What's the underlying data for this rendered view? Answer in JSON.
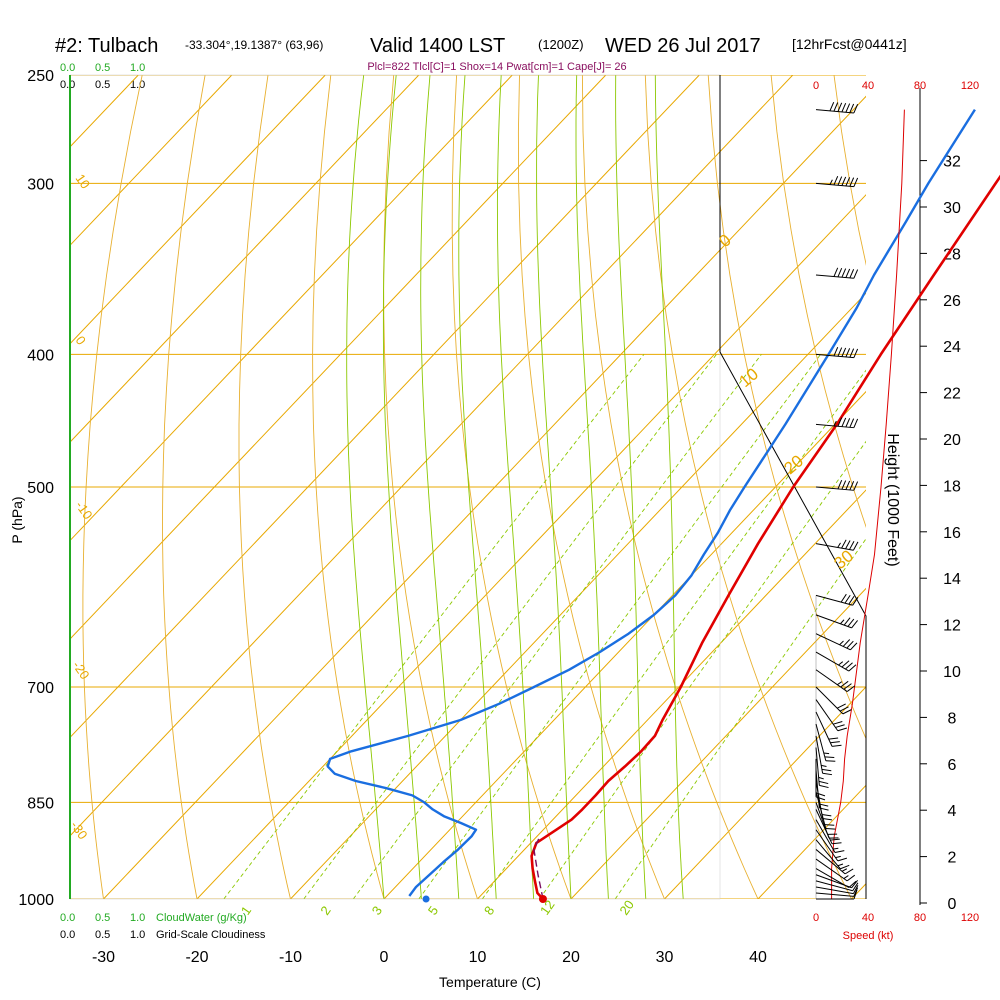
{
  "header": {
    "station": "#2: Tulbach",
    "coords": "-33.304°,19.1387° (63,96)",
    "valid": "Valid 1400 LST",
    "utc": "(1200Z)",
    "date": "WED 26 Jul 2017",
    "forecast": "[12hrFcst@0441z]",
    "indices": "Plcl=822 Tlcl[C]=1 Shox=14 Pwat[cm]=1 Cape[J]= 26"
  },
  "colors": {
    "isotherm": "#e8a800",
    "dry_adiabat": "#e8b030",
    "moist_adiabat": "#8cc800",
    "mixing_ratio": "#8cc800",
    "temperature": "#e00000",
    "dewpoint": "#1a6ee0",
    "parcel": "#7a1060",
    "cloud": "#22aa22",
    "speed": "#dd0000"
  },
  "cloud_scale": {
    "top_green": [
      "0.0",
      "0.5",
      "1.0"
    ],
    "top_black": [
      "0.0",
      "0.5",
      "1.0"
    ],
    "bottom_green": [
      "0.0",
      "0.5",
      "1.0"
    ],
    "bottom_black": [
      "0.0",
      "0.5",
      "1.0"
    ],
    "cloudwater_label": "CloudWater (g/Kg)",
    "cloudiness_label": "Grid-Scale Cloudiness"
  },
  "speed_axis": {
    "ticks": [
      "0",
      "40",
      "80",
      "120"
    ],
    "label": "Speed (kt)",
    "profile": [
      [
        1000,
        12
      ],
      [
        950,
        12
      ],
      [
        900,
        14
      ],
      [
        870,
        17
      ],
      [
        850,
        19
      ],
      [
        820,
        21
      ],
      [
        790,
        22
      ],
      [
        760,
        24
      ],
      [
        720,
        28
      ],
      [
        650,
        34
      ],
      [
        600,
        40
      ],
      [
        560,
        45
      ],
      [
        500,
        50
      ],
      [
        450,
        54
      ],
      [
        400,
        58
      ],
      [
        350,
        62
      ],
      [
        300,
        66
      ],
      [
        265,
        68
      ]
    ]
  },
  "chart_data": {
    "type": "line",
    "xlabel": "Temperature (C)",
    "ylabel": "P (hPa)",
    "y2label": "Height (1000 Feet)",
    "x_ticks": [
      -30,
      -20,
      -10,
      0,
      10,
      20,
      30,
      40
    ],
    "xlim": [
      -34,
      46
    ],
    "p_ticks": [
      250,
      300,
      400,
      500,
      700,
      850,
      1000
    ],
    "plim": [
      250,
      1000
    ],
    "height_ticks": [
      0,
      2,
      4,
      6,
      8,
      10,
      12,
      14,
      16,
      18,
      20,
      22,
      24,
      26,
      28,
      30,
      32
    ],
    "isotherm_labels": [
      "-30",
      "-20",
      "-10",
      "0",
      "10",
      "20",
      "30",
      "0"
    ],
    "mixing_ratio_labels": [
      "1",
      "2",
      "3",
      "5",
      "8",
      "12",
      "20"
    ],
    "dry_adiabat_labels": [
      "0",
      "10",
      "20",
      "30"
    ],
    "series": [
      {
        "name": "Temperature",
        "points": [
          [
            1000,
            17
          ],
          [
            990,
            15.8
          ],
          [
            970,
            14.3
          ],
          [
            950,
            12.8
          ],
          [
            930,
            11.4
          ],
          [
            910,
            10.6
          ],
          [
            890,
            11.4
          ],
          [
            875,
            12
          ],
          [
            860,
            12.1
          ],
          [
            840,
            12.1
          ],
          [
            820,
            12
          ],
          [
            800,
            12.3
          ],
          [
            780,
            12.5
          ],
          [
            760,
            12.4
          ],
          [
            740,
            11.6
          ],
          [
            700,
            10.2
          ],
          [
            650,
            8
          ],
          [
            600,
            6
          ],
          [
            550,
            3.9
          ],
          [
            500,
            1.9
          ],
          [
            450,
            0.2
          ],
          [
            400,
            -2.2
          ],
          [
            350,
            -4.6
          ],
          [
            300,
            -7.3
          ],
          [
            265,
            -9.4
          ]
        ]
      },
      {
        "name": "Dewpoint",
        "points": [
          [
            995,
            2.4
          ],
          [
            980,
            2.2
          ],
          [
            960,
            2.4
          ],
          [
            940,
            2.6
          ],
          [
            920,
            2.9
          ],
          [
            900,
            3
          ],
          [
            890,
            2.8
          ],
          [
            880,
            0.5
          ],
          [
            870,
            -2
          ],
          [
            860,
            -3.9
          ],
          [
            850,
            -5.5
          ],
          [
            840,
            -7.5
          ],
          [
            830,
            -11
          ],
          [
            820,
            -15
          ],
          [
            810,
            -18
          ],
          [
            800,
            -19.5
          ],
          [
            790,
            -20
          ],
          [
            780,
            -18.5
          ],
          [
            760,
            -14
          ],
          [
            740,
            -10
          ],
          [
            720,
            -7.5
          ],
          [
            700,
            -5.5
          ],
          [
            680,
            -3.5
          ],
          [
            660,
            -2
          ],
          [
            640,
            -0.8
          ],
          [
            620,
            0
          ],
          [
            600,
            0.3
          ],
          [
            580,
            0
          ],
          [
            560,
            -0.8
          ],
          [
            540,
            -1.5
          ],
          [
            520,
            -2.5
          ],
          [
            500,
            -3.3
          ],
          [
            450,
            -5.3
          ],
          [
            400,
            -7.8
          ],
          [
            370,
            -9.5
          ],
          [
            350,
            -11
          ],
          [
            320,
            -13
          ],
          [
            300,
            -14.5
          ],
          [
            265,
            -17
          ]
        ]
      },
      {
        "name": "Parcel",
        "points": [
          [
            1000,
            17
          ],
          [
            960,
            14
          ],
          [
            920,
            11
          ],
          [
            900,
            10.3
          ]
        ]
      }
    ],
    "surface_temperature": 17,
    "surface_dewpoint": 4.5,
    "wind_barbs": [
      {
        "p": 1000,
        "dir": 270,
        "spd": 10
      },
      {
        "p": 990,
        "dir": 275,
        "spd": 10
      },
      {
        "p": 980,
        "dir": 280,
        "spd": 10
      },
      {
        "p": 970,
        "dir": 285,
        "spd": 12
      },
      {
        "p": 960,
        "dir": 290,
        "spd": 12
      },
      {
        "p": 950,
        "dir": 300,
        "spd": 12
      },
      {
        "p": 935,
        "dir": 305,
        "spd": 13
      },
      {
        "p": 920,
        "dir": 310,
        "spd": 14
      },
      {
        "p": 905,
        "dir": 320,
        "spd": 15
      },
      {
        "p": 890,
        "dir": 325,
        "spd": 16
      },
      {
        "p": 875,
        "dir": 330,
        "spd": 17
      },
      {
        "p": 860,
        "dir": 335,
        "spd": 18
      },
      {
        "p": 850,
        "dir": 340,
        "spd": 19
      },
      {
        "p": 835,
        "dir": 345,
        "spd": 20
      },
      {
        "p": 820,
        "dir": 350,
        "spd": 21
      },
      {
        "p": 805,
        "dir": 355,
        "spd": 22
      },
      {
        "p": 790,
        "dir": 0,
        "spd": 22
      },
      {
        "p": 775,
        "dir": 355,
        "spd": 24
      },
      {
        "p": 760,
        "dir": 350,
        "spd": 25
      },
      {
        "p": 745,
        "dir": 345,
        "spd": 26
      },
      {
        "p": 730,
        "dir": 335,
        "spd": 28
      },
      {
        "p": 715,
        "dir": 325,
        "spd": 30
      },
      {
        "p": 700,
        "dir": 315,
        "spd": 32
      },
      {
        "p": 680,
        "dir": 305,
        "spd": 33
      },
      {
        "p": 660,
        "dir": 300,
        "spd": 34
      },
      {
        "p": 640,
        "dir": 295,
        "spd": 35
      },
      {
        "p": 620,
        "dir": 290,
        "spd": 37
      },
      {
        "p": 600,
        "dir": 285,
        "spd": 40
      },
      {
        "p": 550,
        "dir": 280,
        "spd": 45
      },
      {
        "p": 500,
        "dir": 275,
        "spd": 50
      },
      {
        "p": 450,
        "dir": 275,
        "spd": 54
      },
      {
        "p": 400,
        "dir": 275,
        "spd": 58
      },
      {
        "p": 350,
        "dir": 275,
        "spd": 62
      },
      {
        "p": 300,
        "dir": 275,
        "spd": 66
      },
      {
        "p": 265,
        "dir": 275,
        "spd": 68
      }
    ]
  }
}
